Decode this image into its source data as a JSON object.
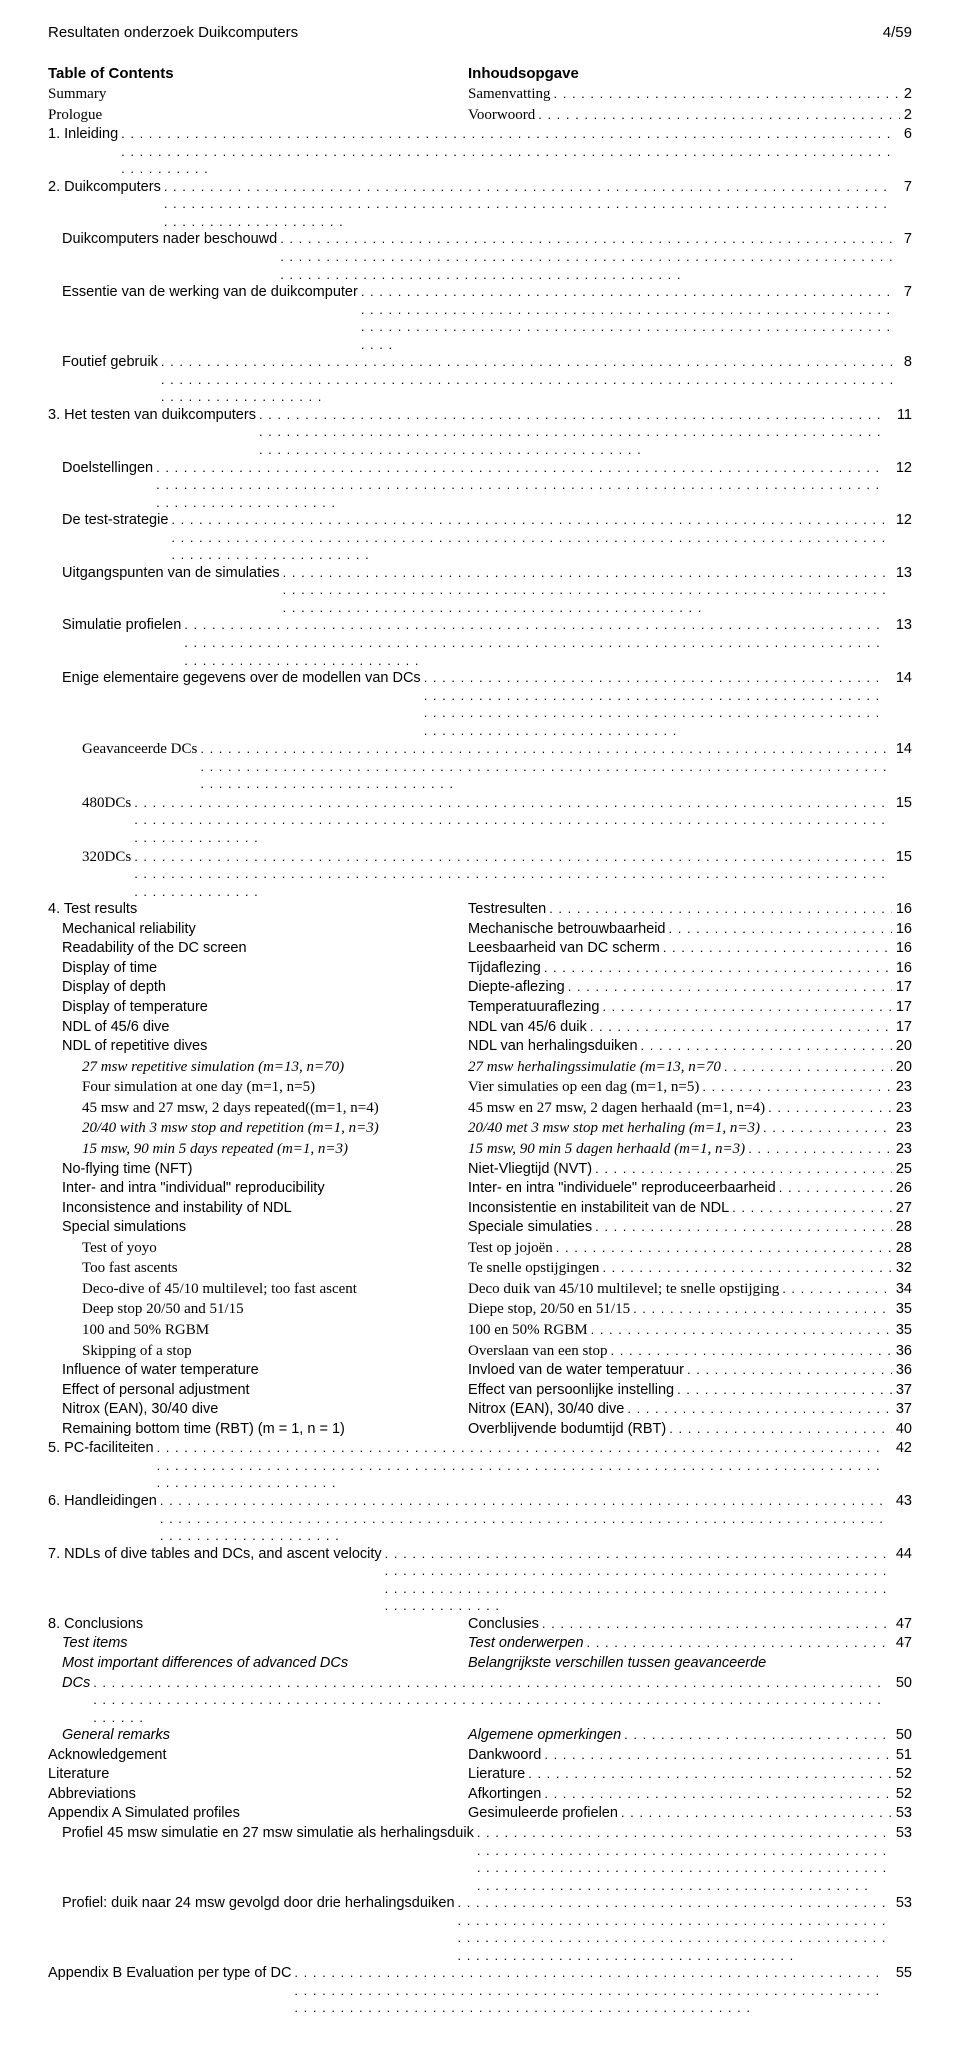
{
  "header": {
    "left": "Resultaten onderzoek Duikcomputers",
    "right": "4/59"
  },
  "title": {
    "left": "Table of Contents",
    "right": "Inhoudsopgave"
  },
  "rows": [
    {
      "type": "two",
      "left": "Summary",
      "right": "Samenvatting",
      "page": "2",
      "indent": 0,
      "serif": true
    },
    {
      "type": "two",
      "left": "Prologue",
      "right": "Voorwoord",
      "page": "2",
      "indent": 0,
      "serif": true
    },
    {
      "type": "full",
      "text": "1. Inleiding",
      "page": "6",
      "indent": 0
    },
    {
      "type": "full",
      "text": "2. Duikcomputers",
      "page": "7",
      "indent": 0
    },
    {
      "type": "full",
      "text": "Duikcomputers nader beschouwd",
      "page": "7",
      "indent": 1
    },
    {
      "type": "full",
      "text": "Essentie van de werking van de duikcomputer",
      "page": "7",
      "indent": 1
    },
    {
      "type": "full",
      "text": "Foutief gebruik",
      "page": "8",
      "indent": 1
    },
    {
      "type": "full",
      "text": "3. Het testen van duikcomputers",
      "page": "11",
      "indent": 0
    },
    {
      "type": "full",
      "text": "Doelstellingen",
      "page": "12",
      "indent": 1
    },
    {
      "type": "full",
      "text": "De test-strategie",
      "page": "12",
      "indent": 1
    },
    {
      "type": "full",
      "text": "Uitgangspunten van de simulaties",
      "page": "13",
      "indent": 1
    },
    {
      "type": "full",
      "text": "Simulatie profielen",
      "page": "13",
      "indent": 1
    },
    {
      "type": "full",
      "text": "Enige elementaire gegevens over de modellen van DCs",
      "page": "14",
      "indent": 1
    },
    {
      "type": "full",
      "text": "Geavanceerde DCs",
      "page": "14",
      "indent": 2,
      "serif": true
    },
    {
      "type": "full",
      "text": "480DCs",
      "page": "15",
      "indent": 2,
      "serif": true
    },
    {
      "type": "full",
      "text": "320DCs",
      "page": "15",
      "indent": 2,
      "serif": true
    },
    {
      "type": "two",
      "left": "4. Test results",
      "right": "Testresulten",
      "page": "16",
      "indent": 0
    },
    {
      "type": "two",
      "left": "Mechanical reliability",
      "right": "Mechanische betrouwbaarheid",
      "page": "16",
      "indent": 1
    },
    {
      "type": "two",
      "left": "Readability of the DC screen",
      "right": "Leesbaarheid van DC scherm",
      "page": "16",
      "indent": 1
    },
    {
      "type": "two",
      "left": "Display of time",
      "right": "Tijdaflezing",
      "page": "16",
      "indent": 1
    },
    {
      "type": "two",
      "left": "Display of depth",
      "right": "Diepte-aflezing",
      "page": "17",
      "indent": 1
    },
    {
      "type": "two",
      "left": "Display of temperature",
      "right": "Temperatuuraflezing",
      "page": "17",
      "indent": 1
    },
    {
      "type": "two",
      "left": "NDL of 45/6 dive",
      "right": "NDL van 45/6 duik",
      "page": "17",
      "indent": 1
    },
    {
      "type": "two",
      "left": "NDL of repetitive dives",
      "right": "NDL van herhalingsduiken",
      "page": "20",
      "indent": 1
    },
    {
      "type": "two",
      "left": "27 msw repetitive simulation (m=13, n=70)",
      "right": "27 msw herhalingssimulatie (m=13, n=70",
      "page": "20",
      "indent": 2,
      "serif": true,
      "ital": true
    },
    {
      "type": "two",
      "left": "Four simulation at one day (m=1, n=5)",
      "right": "Vier simulaties op een dag (m=1, n=5)",
      "page": "23",
      "indent": 2,
      "serif": true
    },
    {
      "type": "two",
      "left": "45 msw and 27 msw, 2 days repeated((m=1, n=4)",
      "right": "45 msw en 27 msw, 2 dagen herhaald (m=1, n=4)",
      "page": "23",
      "indent": 2,
      "serif": true
    },
    {
      "type": "two",
      "left": "20/40 with 3 msw stop and repetition (m=1, n=3)",
      "right": "20/40 met 3 msw stop met herhaling (m=1, n=3)",
      "page": "23",
      "indent": 2,
      "serif": true,
      "ital": true
    },
    {
      "type": "two",
      "left": "15 msw, 90 min 5 days repeated (m=1, n=3)",
      "right": "15 msw, 90 min 5 dagen herhaald (m=1, n=3)",
      "page": "23",
      "indent": 2,
      "serif": true,
      "ital": true
    },
    {
      "type": "two",
      "left": "No-flying time (NFT)",
      "right": "Niet-Vliegtijd (NVT)",
      "page": "25",
      "indent": 1
    },
    {
      "type": "two",
      "left": "Inter- and intra \"individual\" reproducibility",
      "right": "Inter- en intra \"individuele\" reproduceerbaarheid",
      "page": "26",
      "indent": 1
    },
    {
      "type": "two",
      "left": "Inconsistence and instability of NDL",
      "right": "Inconsistentie en instabiliteit van de NDL",
      "page": "27",
      "indent": 1
    },
    {
      "type": "two",
      "left": "Special simulations",
      "right": "Speciale simulaties",
      "page": "28",
      "indent": 1
    },
    {
      "type": "two",
      "left": "Test of yoyo",
      "right": "Test op jojoën",
      "page": "28",
      "indent": 2,
      "serif": true
    },
    {
      "type": "two",
      "left": "Too fast ascents",
      "right": "Te snelle opstijgingen",
      "page": "32",
      "indent": 2,
      "serif": true
    },
    {
      "type": "two",
      "left": "Deco-dive of 45/10 multilevel; too fast ascent",
      "right": "Deco duik van 45/10 multilevel; te snelle opstijging",
      "page": "34",
      "indent": 2,
      "serif": true
    },
    {
      "type": "two",
      "left": "Deep stop 20/50 and 51/15",
      "right": "Diepe stop, 20/50 en 51/15",
      "page": "35",
      "indent": 2,
      "serif": true
    },
    {
      "type": "two",
      "left": "100 and 50% RGBM",
      "right": "100 en 50% RGBM",
      "page": "35",
      "indent": 2,
      "serif": true
    },
    {
      "type": "two",
      "left": "Skipping of a stop",
      "right": "Overslaan van een stop",
      "page": "36",
      "indent": 2,
      "serif": true
    },
    {
      "type": "two",
      "left": "Influence of water temperature",
      "right": "Invloed van de water temperatuur",
      "page": "36",
      "indent": 1
    },
    {
      "type": "two",
      "left": "Effect of personal adjustment",
      "right": "Effect van persoonlijke instelling",
      "page": "37",
      "indent": 1
    },
    {
      "type": "two",
      "left": "Nitrox (EAN), 30/40 dive",
      "right": "Nitrox (EAN), 30/40 dive",
      "page": "37",
      "indent": 1
    },
    {
      "type": "two",
      "left": "Remaining bottom time (RBT) (m = 1, n = 1)",
      "right": "Overblijvende bodumtijd (RBT)",
      "page": "40",
      "indent": 1
    },
    {
      "type": "full",
      "text": "5. PC-faciliteiten",
      "page": "42",
      "indent": 0
    },
    {
      "type": "full",
      "text": "6. Handleidingen",
      "page": "43",
      "indent": 0
    },
    {
      "type": "full",
      "text": "7. NDLs of dive tables and DCs, and ascent velocity",
      "page": "44",
      "indent": 0
    },
    {
      "type": "two",
      "left": "8. Conclusions",
      "right": "Conclusies",
      "page": "47",
      "indent": 0
    },
    {
      "type": "two",
      "left": "Test items",
      "right": "Test onderwerpen",
      "page": "47",
      "indent": 1,
      "ital": true
    },
    {
      "type": "two",
      "left": "Most important differences of advanced DCs",
      "right": "Belangrijkste verschillen tussen geavanceerde",
      "indent": 1,
      "ital": true,
      "nopage": true
    },
    {
      "type": "full",
      "text": "DCs",
      "page": "50",
      "indent": 1,
      "ital": true
    },
    {
      "type": "two",
      "left": "General remarks",
      "right": "Algemene opmerkingen",
      "page": "50",
      "indent": 1,
      "ital": true
    },
    {
      "type": "two",
      "left": "Acknowledgement",
      "right": "Dankwoord",
      "page": "51",
      "indent": 0
    },
    {
      "type": "two",
      "left": "Literature",
      "right": "Lierature",
      "page": "52",
      "indent": 0
    },
    {
      "type": "two",
      "left": "Abbreviations",
      "right": "Afkortingen",
      "page": "52",
      "indent": 0
    },
    {
      "type": "two",
      "left": "Appendix A   Simulated profiles",
      "right": "Gesimuleerde profielen",
      "page": "53",
      "indent": 0
    },
    {
      "type": "full",
      "text": "Profiel 45 msw simulatie en 27 msw simulatie als herhalingsduik",
      "page": "53",
      "indent": 1
    },
    {
      "type": "full",
      "text": "Profiel: duik naar 24 msw gevolgd door drie herhalingsduiken",
      "page": "53",
      "indent": 1
    },
    {
      "type": "full",
      "text": "Appendix B   Evaluation per type of DC",
      "page": "55",
      "indent": 0
    }
  ],
  "leader_fill": ". . . . . . . . . . . . . . . . . . . . . . . . . . . . . . . . . . . . . . . . . . . . . . . . . . . . . . . . . . . . . . . . . . . . . . . . . . . . . . . . . . . . . . . . . . . . . . . . . . . . . . . . . . . . . . . . . . . . . . . . . . . . . . . . . . . . . . . . . . . . . . . . . . . . . . . . . . . . . . . . . . . . . . . . . . . . . . . . . ."
}
